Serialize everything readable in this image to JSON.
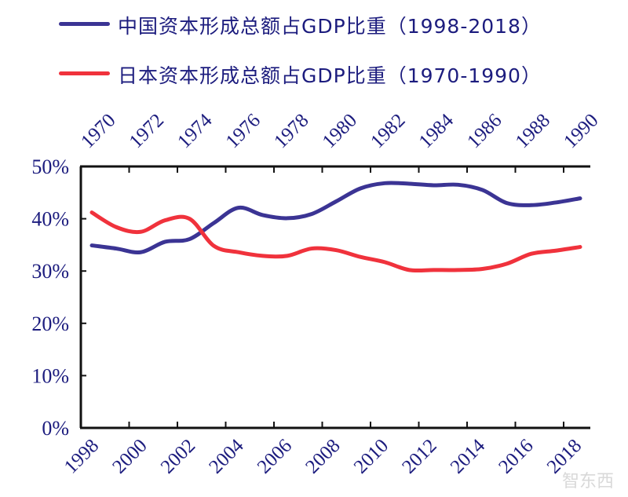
{
  "chart_data": {
    "type": "line",
    "legend_position": "top",
    "grid": false,
    "ylim": [
      0,
      50
    ],
    "y_ticks": [
      "0%",
      "10%",
      "20%",
      "30%",
      "40%",
      "50%"
    ],
    "x_bottom_ticks": [
      "1998",
      "2000",
      "2002",
      "2004",
      "2006",
      "2008",
      "2010",
      "2012",
      "2014",
      "2016",
      "2018"
    ],
    "x_top_ticks": [
      "1970",
      "1972",
      "1974",
      "1976",
      "1978",
      "1980",
      "1982",
      "1984",
      "1986",
      "1988",
      "1990"
    ],
    "series": [
      {
        "name": "中国资本形成总额占GDP比重（1998-2018）",
        "axis": "bottom",
        "color": "#3b3494",
        "x": [
          1998,
          1999,
          2000,
          2001,
          2002,
          2003,
          2004,
          2005,
          2006,
          2007,
          2008,
          2009,
          2010,
          2011,
          2012,
          2013,
          2014,
          2015,
          2016,
          2017,
          2018
        ],
        "values": [
          34.9,
          34.3,
          33.6,
          35.6,
          36.1,
          39.2,
          42.1,
          40.7,
          40.1,
          40.9,
          43.3,
          45.8,
          46.8,
          46.7,
          46.4,
          46.5,
          45.5,
          43.0,
          42.6,
          43.1,
          43.9
        ]
      },
      {
        "name": "日本资本形成总额占GDP比重（1970-1990）",
        "axis": "top",
        "color": "#f0323c",
        "x": [
          1970,
          1971,
          1972,
          1973,
          1974,
          1975,
          1976,
          1977,
          1978,
          1979,
          1980,
          1981,
          1982,
          1983,
          1984,
          1985,
          1986,
          1987,
          1988,
          1989,
          1990
        ],
        "values": [
          41.2,
          38.4,
          37.5,
          39.7,
          40.0,
          34.8,
          33.6,
          32.9,
          32.9,
          34.3,
          34.0,
          32.7,
          31.7,
          30.2,
          30.2,
          30.2,
          30.4,
          31.4,
          33.3,
          33.9,
          34.6
        ]
      }
    ],
    "watermark": "智东西"
  }
}
